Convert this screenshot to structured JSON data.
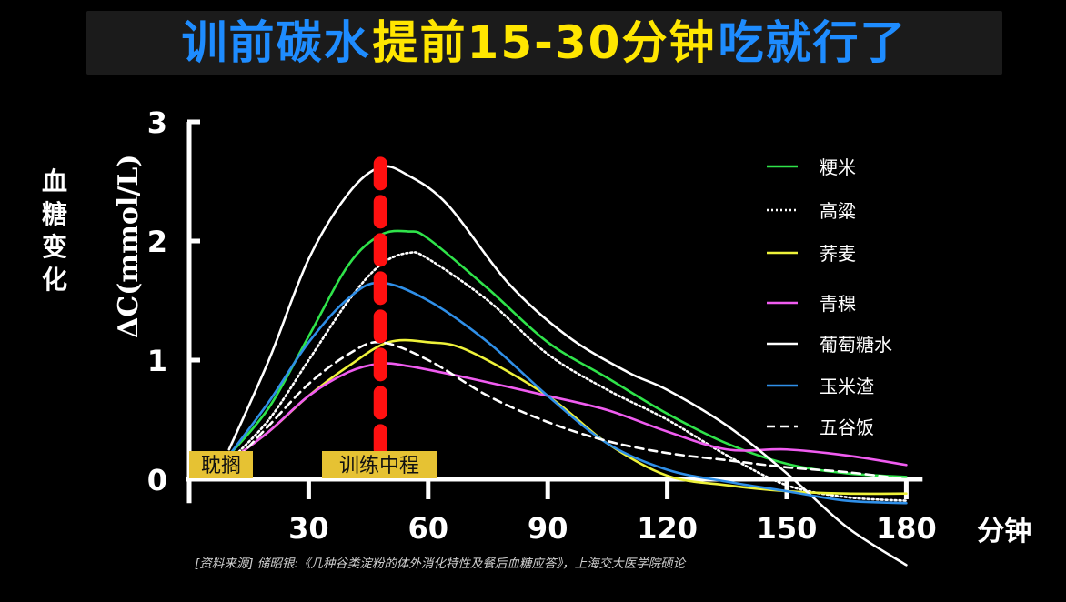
{
  "title": {
    "segments": [
      {
        "text": "训前碳水",
        "color": "#1e8cff"
      },
      {
        "text": "提前15-30分钟",
        "color": "#ffe600"
      },
      {
        "text": "吃就行了",
        "color": "#1e8cff"
      }
    ]
  },
  "chart_data": {
    "type": "line",
    "ylabel": "血糖变化",
    "ylabel_unit": "ΔC(mmol/L)",
    "xlabel": "分钟",
    "xlim": [
      0,
      185
    ],
    "ylim": [
      -0.2,
      3
    ],
    "x_ticks": [
      30,
      60,
      90,
      120,
      150,
      180
    ],
    "y_ticks": [
      0,
      1,
      2,
      3
    ],
    "grid": false,
    "legend_position": "right",
    "series": [
      {
        "name": "粳米",
        "color": "#2fe34a",
        "dash": "solid",
        "points": [
          [
            10,
            0.2
          ],
          [
            20,
            0.6
          ],
          [
            30,
            1.2
          ],
          [
            40,
            1.8
          ],
          [
            48,
            2.05
          ],
          [
            55,
            2.08
          ],
          [
            60,
            2.02
          ],
          [
            75,
            1.6
          ],
          [
            90,
            1.15
          ],
          [
            105,
            0.85
          ],
          [
            120,
            0.55
          ],
          [
            135,
            0.3
          ],
          [
            150,
            0.13
          ],
          [
            165,
            0.05
          ],
          [
            180,
            0.02
          ]
        ]
      },
      {
        "name": "高粱",
        "color": "#ffffff",
        "dash": "dotted",
        "points": [
          [
            10,
            0.15
          ],
          [
            20,
            0.5
          ],
          [
            30,
            1.0
          ],
          [
            40,
            1.5
          ],
          [
            48,
            1.8
          ],
          [
            55,
            1.9
          ],
          [
            60,
            1.85
          ],
          [
            75,
            1.5
          ],
          [
            90,
            1.05
          ],
          [
            105,
            0.75
          ],
          [
            120,
            0.5
          ],
          [
            135,
            0.2
          ],
          [
            150,
            -0.05
          ],
          [
            165,
            -0.15
          ],
          [
            180,
            -0.18
          ]
        ]
      },
      {
        "name": "荞麦",
        "color": "#eef23a",
        "dash": "solid",
        "points": [
          [
            10,
            0.15
          ],
          [
            20,
            0.4
          ],
          [
            30,
            0.7
          ],
          [
            40,
            0.95
          ],
          [
            50,
            1.15
          ],
          [
            60,
            1.15
          ],
          [
            70,
            1.08
          ],
          [
            90,
            0.7
          ],
          [
            105,
            0.3
          ],
          [
            120,
            0.03
          ],
          [
            135,
            -0.05
          ],
          [
            150,
            -0.1
          ],
          [
            165,
            -0.12
          ],
          [
            180,
            -0.12
          ]
        ]
      },
      {
        "name": "青稞",
        "color": "#f05cf0",
        "dash": "solid",
        "points": [
          [
            10,
            0.15
          ],
          [
            20,
            0.4
          ],
          [
            30,
            0.7
          ],
          [
            40,
            0.9
          ],
          [
            48,
            0.97
          ],
          [
            55,
            0.95
          ],
          [
            70,
            0.85
          ],
          [
            90,
            0.7
          ],
          [
            105,
            0.58
          ],
          [
            120,
            0.4
          ],
          [
            135,
            0.25
          ],
          [
            150,
            0.25
          ],
          [
            165,
            0.2
          ],
          [
            180,
            0.12
          ]
        ]
      },
      {
        "name": "葡萄糖水",
        "color": "#ffffff",
        "dash": "solid",
        "points": [
          [
            10,
            0.25
          ],
          [
            20,
            1.0
          ],
          [
            30,
            1.85
          ],
          [
            40,
            2.4
          ],
          [
            48,
            2.62
          ],
          [
            55,
            2.55
          ],
          [
            65,
            2.3
          ],
          [
            80,
            1.65
          ],
          [
            95,
            1.2
          ],
          [
            110,
            0.9
          ],
          [
            120,
            0.75
          ],
          [
            135,
            0.45
          ],
          [
            150,
            0.05
          ],
          [
            165,
            -0.4
          ],
          [
            180,
            -0.72
          ]
        ]
      },
      {
        "name": "玉米渣",
        "color": "#2f8fe8",
        "dash": "solid",
        "points": [
          [
            10,
            0.2
          ],
          [
            20,
            0.65
          ],
          [
            30,
            1.15
          ],
          [
            40,
            1.52
          ],
          [
            48,
            1.65
          ],
          [
            60,
            1.5
          ],
          [
            75,
            1.15
          ],
          [
            90,
            0.7
          ],
          [
            105,
            0.3
          ],
          [
            120,
            0.08
          ],
          [
            135,
            -0.02
          ],
          [
            150,
            -0.1
          ],
          [
            165,
            -0.18
          ],
          [
            180,
            -0.2
          ]
        ]
      },
      {
        "name": "五谷饭",
        "color": "#ffffff",
        "dash": "dashed",
        "points": [
          [
            10,
            0.1
          ],
          [
            20,
            0.45
          ],
          [
            30,
            0.8
          ],
          [
            40,
            1.05
          ],
          [
            48,
            1.15
          ],
          [
            60,
            1.0
          ],
          [
            75,
            0.7
          ],
          [
            90,
            0.48
          ],
          [
            105,
            0.32
          ],
          [
            120,
            0.22
          ],
          [
            135,
            0.16
          ],
          [
            150,
            0.1
          ],
          [
            165,
            0.06
          ],
          [
            180,
            0.0
          ]
        ]
      }
    ],
    "marker": {
      "x": 48,
      "color": "#ff1010"
    },
    "annotations": [
      {
        "text": "耽搁",
        "bg": "#e6c233",
        "color": "#111111"
      },
      {
        "text": "训练中程",
        "bg": "#e6c233",
        "color": "#111111"
      }
    ]
  },
  "source": "[资料来源] 储昭银:《几种谷类淀粉的体外消化特性及餐后血糖应答》，上海交大医学院硕论"
}
